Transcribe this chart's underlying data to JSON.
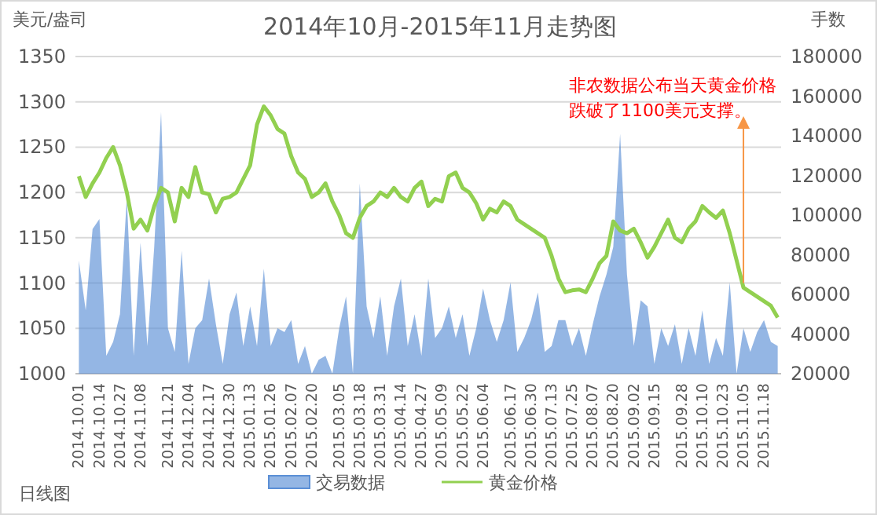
{
  "chart_data": {
    "type": "line",
    "title": "2014年10月-2015年11月走势图",
    "ylabel": "美元/盎司",
    "y2label": "手数",
    "categories": [
      "2014.10.01",
      null,
      null,
      "2014.10.14",
      null,
      null,
      "2014.10.27",
      null,
      null,
      "2014.11.08",
      null,
      null,
      null,
      "2014.11.21",
      null,
      null,
      "2014.12.04",
      null,
      null,
      "2014.12.17",
      null,
      null,
      "2014.12.30",
      null,
      null,
      "2015.01.13",
      null,
      null,
      "2015.01.26",
      null,
      null,
      "2015.02.07",
      null,
      null,
      "2015.02.20",
      null,
      null,
      null,
      "2015.03.05",
      null,
      null,
      "2015.03.18",
      null,
      null,
      "2015.03.31",
      null,
      null,
      "2015.04.14",
      null,
      null,
      "2015.04.27",
      null,
      null,
      "2015.05.09",
      null,
      null,
      "2015.05.22",
      null,
      null,
      "2015.06.04",
      null,
      null,
      null,
      "2015.06.17",
      null,
      null,
      "2015.06.30",
      null,
      null,
      "2015.07.13",
      null,
      null,
      "2015.07.25",
      null,
      null,
      "2015.08.07",
      null,
      null,
      "2015.08.20",
      null,
      null,
      "2015.09.02",
      null,
      null,
      "2015.09.15",
      null,
      null,
      null,
      "2015.09.28",
      null,
      null,
      "2015.10.10",
      null,
      null,
      "2015.10.23",
      null,
      null,
      "2015.11.05",
      null,
      null,
      "2015.11.18",
      null,
      null
    ],
    "series": [
      {
        "name": "交易数据",
        "type": "area",
        "axis": "y2",
        "color": "#5b8fd6",
        "values": [
          77000,
          52000,
          93000,
          98000,
          29000,
          36000,
          50000,
          109000,
          29000,
          86000,
          34000,
          84000,
          152000,
          43000,
          31000,
          82000,
          25000,
          43000,
          47000,
          68000,
          45000,
          25000,
          50000,
          61000,
          34000,
          54000,
          34000,
          73000,
          34000,
          43000,
          41000,
          47000,
          25000,
          34000,
          20000,
          27000,
          29000,
          20000,
          43000,
          59000,
          20000,
          116000,
          54000,
          38000,
          59000,
          29000,
          54000,
          68000,
          34000,
          50000,
          29000,
          68000,
          38000,
          43000,
          54000,
          38000,
          50000,
          29000,
          43000,
          63000,
          47000,
          36000,
          47000,
          66000,
          31000,
          38000,
          47000,
          61000,
          31000,
          34000,
          47000,
          47000,
          34000,
          43000,
          29000,
          45000,
          59000,
          70000,
          84000,
          141000,
          70000,
          34000,
          57000,
          54000,
          25000,
          43000,
          34000,
          45000,
          25000,
          43000,
          29000,
          52000,
          25000,
          38000,
          29000,
          66000,
          20000,
          43000,
          31000,
          41000,
          47000,
          36000,
          34000
        ]
      },
      {
        "name": "黄金价格",
        "color": "#92d050",
        "values": [
          1218,
          1195,
          1210,
          1222,
          1238,
          1250,
          1230,
          1200,
          1160,
          1170,
          1158,
          1185,
          1205,
          1200,
          1168,
          1205,
          1195,
          1228,
          1200,
          1198,
          1178,
          1193,
          1195,
          1200,
          1215,
          1230,
          1275,
          1295,
          1285,
          1270,
          1265,
          1240,
          1222,
          1215,
          1195,
          1200,
          1210,
          1190,
          1175,
          1155,
          1150,
          1172,
          1185,
          1190,
          1200,
          1195,
          1205,
          1195,
          1190,
          1205,
          1212,
          1185,
          1193,
          1190,
          1218,
          1222,
          1205,
          1200,
          1188,
          1170,
          1182,
          1178,
          1190,
          1185,
          1170,
          1165,
          1160,
          1155,
          1150,
          1130,
          1105,
          1090,
          1092,
          1093,
          1090,
          1105,
          1122,
          1130,
          1168,
          1158,
          1155,
          1160,
          1145,
          1128,
          1140,
          1155,
          1170,
          1150,
          1145,
          1160,
          1168,
          1185,
          1178,
          1172,
          1180,
          1155,
          1125,
          1095,
          1090,
          1085,
          1080,
          1075,
          1062
        ]
      }
    ],
    "ylim": [
      1000,
      1350
    ],
    "yticks": [
      1000,
      1050,
      1100,
      1150,
      1200,
      1250,
      1300,
      1350
    ],
    "y2lim": [
      20000,
      180000
    ],
    "y2ticks": [
      20000,
      40000,
      60000,
      80000,
      100000,
      120000,
      140000,
      160000,
      180000
    ],
    "grid": "y",
    "legend": "bottom",
    "annotations": [
      {
        "text": "非农数据公布当天黄金价格跌破了1100美元支撑。",
        "x": "2015.11.05",
        "y": 1100
      },
      "日线图"
    ]
  }
}
